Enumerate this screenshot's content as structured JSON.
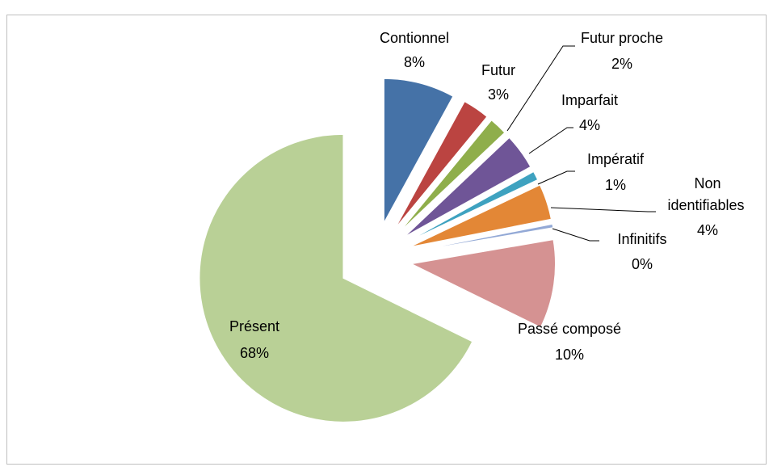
{
  "chart_data": {
    "type": "pie",
    "categories": [
      "Contionnel",
      "Futur",
      "Futur proche",
      "Imparfait",
      "Impératif",
      "Non identifiables",
      "Infinitifs",
      "Passé composé",
      "Présent"
    ],
    "values": [
      8,
      3,
      2,
      4,
      1,
      4,
      0.4,
      10,
      68
    ],
    "value_labels": [
      "8%",
      "3%",
      "2%",
      "4%",
      "1%",
      "4%",
      "0%",
      "10%",
      "68%"
    ],
    "colors": [
      "#4572a7",
      "#bb4441",
      "#8fae4b",
      "#6f5597",
      "#3ea2c0",
      "#e38736",
      "#93a9d6",
      "#d59292",
      "#b9d096"
    ]
  }
}
